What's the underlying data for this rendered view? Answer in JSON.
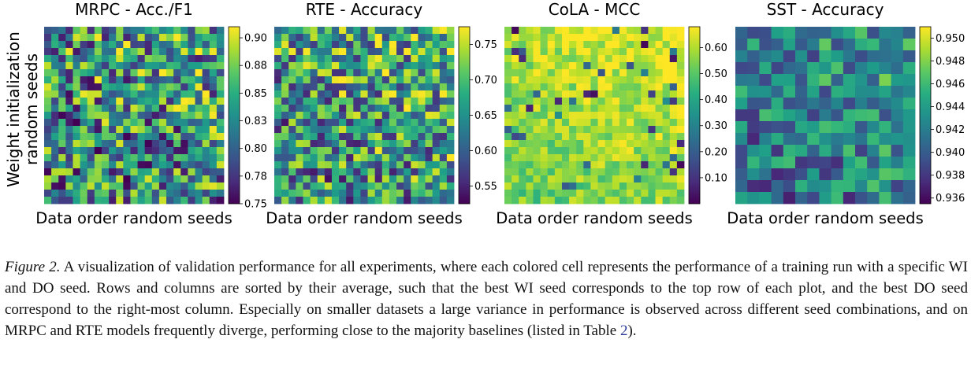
{
  "figure": {
    "ylabel_line1": "Weight initialization",
    "ylabel_line2": "random seeds"
  },
  "chart_data": [
    {
      "type": "heatmap",
      "title": "MRPC - Acc./F1",
      "xlabel": "Data order random seeds",
      "ylabel": "Weight initialization random seeds",
      "grid_size": 25,
      "colorbar_range": [
        0.75,
        0.91
      ],
      "colorbar_ticks": [
        "0.90",
        "0.88",
        "0.85",
        "0.83",
        "0.80",
        "0.78",
        "0.75"
      ],
      "colorbar_tick_values": [
        0.9,
        0.875,
        0.85,
        0.825,
        0.8,
        0.775,
        0.75
      ],
      "colormap": "viridis",
      "seed": 11,
      "bias": 0.5,
      "spread": 0.48
    },
    {
      "type": "heatmap",
      "title": "RTE - Accuracy",
      "xlabel": "Data order random seeds",
      "ylabel": "",
      "grid_size": 25,
      "colorbar_range": [
        0.525,
        0.775
      ],
      "colorbar_ticks": [
        "0.75",
        "0.70",
        "0.65",
        "0.60",
        "0.55"
      ],
      "colorbar_tick_values": [
        0.75,
        0.7,
        0.65,
        0.6,
        0.55
      ],
      "colormap": "viridis",
      "seed": 23,
      "bias": 0.55,
      "spread": 0.45
    },
    {
      "type": "heatmap",
      "title": "CoLA - MCC",
      "xlabel": "Data order random seeds",
      "ylabel": "",
      "grid_size": 25,
      "colorbar_range": [
        0.0,
        0.68
      ],
      "colorbar_ticks": [
        "0.60",
        "0.50",
        "0.40",
        "0.30",
        "0.20",
        "0.10"
      ],
      "colorbar_tick_values": [
        0.6,
        0.5,
        0.4,
        0.3,
        0.2,
        0.1
      ],
      "colormap": "viridis",
      "seed": 37,
      "bias": 0.86,
      "spread": 0.14
    },
    {
      "type": "heatmap",
      "title": "SST - Accuracy",
      "xlabel": "Data order random seeds",
      "ylabel": "",
      "grid_size": 15,
      "colorbar_range": [
        0.9355,
        0.951
      ],
      "colorbar_ticks": [
        "0.950",
        "0.948",
        "0.946",
        "0.944",
        "0.942",
        "0.940",
        "0.938",
        "0.936"
      ],
      "colorbar_tick_values": [
        0.95,
        0.948,
        0.946,
        0.944,
        0.942,
        0.94,
        0.938,
        0.936
      ],
      "colormap": "viridis",
      "seed": 53,
      "bias": 0.45,
      "spread": 0.3
    }
  ],
  "caption": {
    "label": "Figure 2.",
    "text_before_ref": " A visualization of validation performance for all experiments, where each colored cell represents the performance of a training run with a specific WI and DO seed. Rows and columns are sorted by their average, such that the best WI seed corresponds to the top row of each plot, and the best DO seed correspond to the right-most column. Especially on smaller datasets a large variance in performance is observed across different seed combinations, and on MRPC and RTE models frequently diverge, performing close to the majority baselines (listed in Table ",
    "ref": "2",
    "text_after_ref": ")."
  }
}
